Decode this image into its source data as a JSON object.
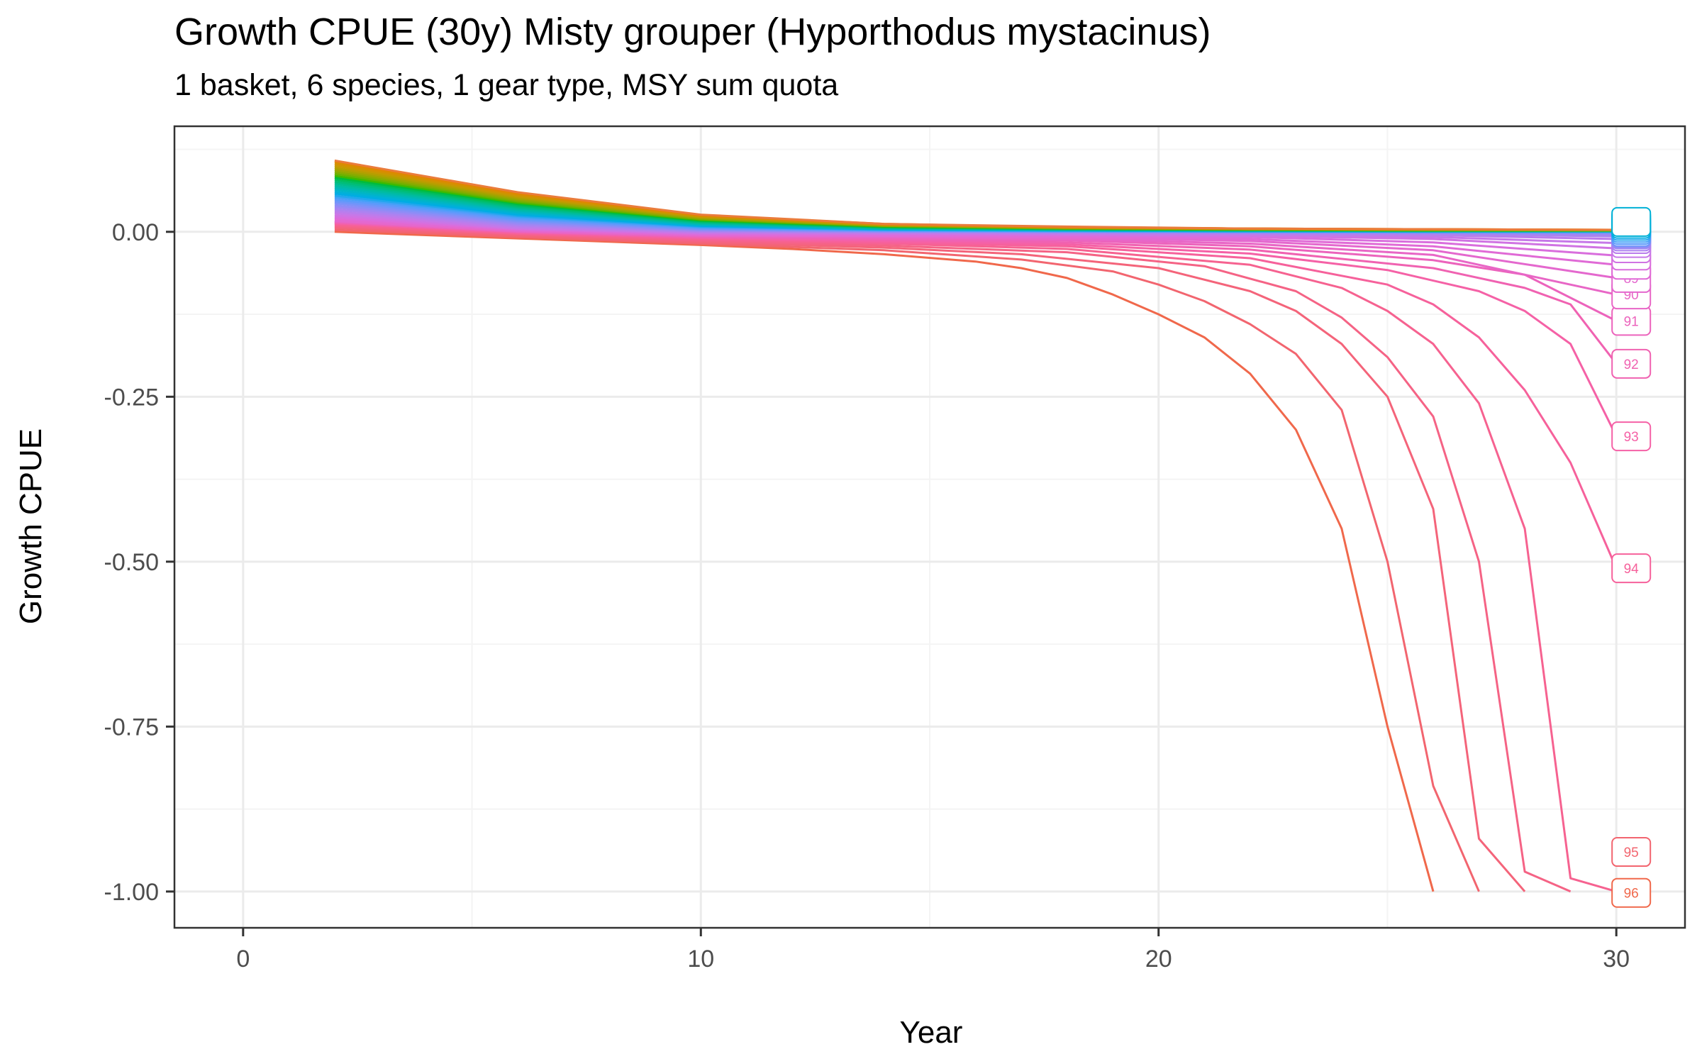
{
  "chart_data": {
    "type": "line",
    "title": "Growth CPUE (30y) Misty grouper (Hyporthodus mystacinus)",
    "subtitle": "1 basket, 6 species, 1 gear type, MSY sum quota",
    "xlabel": "Year",
    "ylabel": "Growth CPUE",
    "xlim": [
      -1.5,
      31.5
    ],
    "ylim": [
      -1.055,
      0.16
    ],
    "x_ticks": [
      0,
      10,
      20,
      30
    ],
    "x_tick_labels": [
      "0",
      "10",
      "20",
      "30"
    ],
    "y_ticks": [
      0.0,
      -0.25,
      -0.5,
      -0.75,
      -1.0
    ],
    "y_tick_labels": [
      "0.00",
      "-0.25",
      "-0.50",
      "-0.75",
      "-1.00"
    ],
    "grid": true,
    "legend": "none",
    "series_count_note": "many overlapping series (approx. 96 scenarios) with end-of-line labels at year 30",
    "series": [
      {
        "label": "96",
        "color": "#F0684B",
        "x": [
          2,
          4,
          6,
          8,
          10,
          12,
          14,
          16,
          17,
          18,
          19,
          20,
          21,
          22,
          23,
          24,
          25,
          26
        ],
        "values": [
          0.0,
          -0.005,
          -0.01,
          -0.015,
          -0.02,
          -0.026,
          -0.034,
          -0.045,
          -0.055,
          -0.07,
          -0.095,
          -0.125,
          -0.16,
          -0.215,
          -0.3,
          -0.45,
          -0.75,
          -1.0
        ]
      },
      {
        "label": "95",
        "color": "#F2656F",
        "x": [
          2,
          6,
          10,
          14,
          17,
          19,
          20,
          21,
          22,
          23,
          24,
          25,
          26,
          27
        ],
        "values": [
          0.003,
          -0.008,
          -0.018,
          -0.028,
          -0.042,
          -0.06,
          -0.08,
          -0.105,
          -0.14,
          -0.185,
          -0.27,
          -0.5,
          -0.84,
          -1.0
        ]
      },
      {
        "label": "",
        "color": "#F4647A",
        "x": [
          2,
          6,
          10,
          14,
          17,
          20,
          22,
          23,
          24,
          25,
          26,
          27,
          28
        ],
        "values": [
          0.006,
          -0.006,
          -0.016,
          -0.024,
          -0.034,
          -0.055,
          -0.09,
          -0.12,
          -0.17,
          -0.25,
          -0.42,
          -0.92,
          -1.0
        ]
      },
      {
        "label": "",
        "color": "#F56385",
        "x": [
          2,
          6,
          10,
          14,
          18,
          21,
          23,
          24,
          25,
          26,
          27,
          28,
          29
        ],
        "values": [
          0.008,
          -0.004,
          -0.014,
          -0.021,
          -0.031,
          -0.052,
          -0.09,
          -0.13,
          -0.19,
          -0.28,
          -0.5,
          -0.97,
          -1.0
        ]
      },
      {
        "label": "",
        "color": "#F66290",
        "x": [
          2,
          6,
          10,
          14,
          18,
          22,
          24,
          25,
          26,
          27,
          28,
          29,
          30
        ],
        "values": [
          0.01,
          -0.003,
          -0.012,
          -0.018,
          -0.026,
          -0.05,
          -0.085,
          -0.12,
          -0.17,
          -0.26,
          -0.45,
          -0.98,
          -1.0
        ]
      },
      {
        "label": "94",
        "color": "#F6619B",
        "x": [
          2,
          6,
          10,
          14,
          18,
          22,
          25,
          26,
          27,
          28,
          29,
          30
        ],
        "values": [
          0.012,
          -0.002,
          -0.01,
          -0.016,
          -0.022,
          -0.04,
          -0.08,
          -0.11,
          -0.16,
          -0.24,
          -0.35,
          -0.51
        ]
      },
      {
        "label": "93",
        "color": "#F561A6",
        "x": [
          2,
          6,
          10,
          14,
          18,
          22,
          25,
          27,
          28,
          29,
          30
        ],
        "values": [
          0.013,
          -0.001,
          -0.009,
          -0.014,
          -0.019,
          -0.033,
          -0.058,
          -0.09,
          -0.12,
          -0.17,
          -0.31
        ]
      },
      {
        "label": "92",
        "color": "#F062B1",
        "x": [
          2,
          6,
          10,
          14,
          18,
          22,
          26,
          28,
          29,
          30
        ],
        "values": [
          0.014,
          0.0,
          -0.008,
          -0.012,
          -0.016,
          -0.027,
          -0.055,
          -0.085,
          -0.11,
          -0.2
        ]
      },
      {
        "label": "91",
        "color": "#EC63BC",
        "x": [
          2,
          6,
          10,
          14,
          18,
          22,
          26,
          28,
          30
        ],
        "values": [
          0.015,
          0.0,
          -0.007,
          -0.01,
          -0.013,
          -0.022,
          -0.043,
          -0.065,
          -0.135
        ]
      },
      {
        "label": "90",
        "color": "#E866C6",
        "x": [
          2,
          6,
          10,
          14,
          18,
          22,
          26,
          30
        ],
        "values": [
          0.016,
          0.001,
          -0.006,
          -0.008,
          -0.011,
          -0.018,
          -0.035,
          -0.095
        ]
      },
      {
        "label": "89",
        "color": "#E468CE",
        "x": [
          2,
          6,
          10,
          14,
          18,
          22,
          26,
          30
        ],
        "values": [
          0.017,
          0.002,
          -0.005,
          -0.007,
          -0.009,
          -0.014,
          -0.028,
          -0.07
        ]
      },
      {
        "label": "",
        "color": "#E06AD6",
        "x": [
          2,
          6,
          10,
          14,
          18,
          22,
          26,
          30
        ],
        "values": [
          0.02,
          0.003,
          -0.004,
          -0.006,
          -0.007,
          -0.011,
          -0.022,
          -0.05
        ]
      },
      {
        "label": "",
        "color": "#D96EDD",
        "x": [
          2,
          6,
          10,
          14,
          18,
          22,
          26,
          30
        ],
        "values": [
          0.022,
          0.004,
          -0.003,
          -0.004,
          -0.005,
          -0.008,
          -0.016,
          -0.036
        ]
      },
      {
        "label": "",
        "color": "#D073E3",
        "x": [
          2,
          6,
          10,
          14,
          18,
          22,
          26,
          30
        ],
        "values": [
          0.025,
          0.005,
          -0.002,
          -0.003,
          -0.004,
          -0.006,
          -0.011,
          -0.025
        ]
      },
      {
        "label": "",
        "color": "#C678E8",
        "x": [
          2,
          6,
          10,
          14,
          18,
          22,
          26,
          30
        ],
        "values": [
          0.028,
          0.006,
          -0.001,
          -0.002,
          -0.003,
          -0.004,
          -0.008,
          -0.017
        ]
      },
      {
        "label": "",
        "color": "#BA7DEC",
        "x": [
          2,
          6,
          10,
          14,
          18,
          22,
          26,
          30
        ],
        "values": [
          0.031,
          0.008,
          0.0,
          -0.001,
          -0.002,
          -0.003,
          -0.005,
          -0.011
        ]
      },
      {
        "label": "",
        "color": "#AD82F0",
        "x": [
          2,
          6,
          10,
          14,
          18,
          22,
          26,
          30
        ],
        "values": [
          0.034,
          0.01,
          0.001,
          0.0,
          -0.001,
          -0.002,
          -0.003,
          -0.007
        ]
      },
      {
        "label": "",
        "color": "#9F87F3",
        "x": [
          2,
          6,
          10,
          14,
          18,
          22,
          26,
          30
        ],
        "values": [
          0.037,
          0.012,
          0.002,
          0.0,
          0.0,
          -0.001,
          -0.002,
          -0.004
        ]
      },
      {
        "label": "",
        "color": "#8F8CF6",
        "x": [
          2,
          6,
          10,
          14,
          18,
          22,
          26,
          30
        ],
        "values": [
          0.04,
          0.014,
          0.003,
          0.001,
          0.0,
          0.0,
          -0.001,
          -0.002
        ]
      },
      {
        "label": "",
        "color": "#7F91F8",
        "x": [
          2,
          6,
          10,
          14,
          18,
          22,
          26,
          30
        ],
        "values": [
          0.043,
          0.016,
          0.004,
          0.001,
          0.0,
          0.0,
          0.0,
          -0.001
        ]
      },
      {
        "label": "",
        "color": "#6D96FA",
        "x": [
          2,
          6,
          10,
          14,
          18,
          22,
          26,
          30
        ],
        "values": [
          0.046,
          0.018,
          0.005,
          0.002,
          0.001,
          0.0,
          0.0,
          0.0
        ]
      },
      {
        "label": "",
        "color": "#5A9BFB",
        "x": [
          2,
          6,
          10,
          14,
          18,
          22,
          26,
          30
        ],
        "values": [
          0.049,
          0.02,
          0.006,
          0.002,
          0.001,
          0.0,
          0.0,
          0.0
        ]
      },
      {
        "label": "",
        "color": "#43A1F7",
        "x": [
          2,
          6,
          10,
          14,
          18,
          22,
          26,
          30
        ],
        "values": [
          0.052,
          0.022,
          0.007,
          0.003,
          0.001,
          0.001,
          0.0,
          0.0
        ]
      },
      {
        "label": "",
        "color": "#21A7EE",
        "x": [
          2,
          6,
          10,
          14,
          18,
          22,
          26,
          30
        ],
        "values": [
          0.055,
          0.024,
          0.008,
          0.003,
          0.002,
          0.001,
          0.0,
          0.0
        ]
      },
      {
        "label": "",
        "color": "#00ACE3",
        "x": [
          2,
          6,
          10,
          14,
          18,
          22,
          26,
          30
        ],
        "values": [
          0.058,
          0.026,
          0.009,
          0.004,
          0.002,
          0.001,
          0.001,
          0.001
        ]
      },
      {
        "label": "",
        "color": "#00B1D6",
        "x": [
          2,
          6,
          10,
          14,
          18,
          22,
          26,
          30
        ],
        "values": [
          0.061,
          0.028,
          0.01,
          0.004,
          0.002,
          0.001,
          0.001,
          0.001
        ]
      },
      {
        "label": "",
        "color": "#00B5C6",
        "x": [
          2,
          6,
          10,
          14,
          18,
          22,
          26,
          30
        ],
        "values": [
          0.064,
          0.03,
          0.011,
          0.005,
          0.003,
          0.002,
          0.001,
          0.001
        ]
      },
      {
        "label": "",
        "color": "#00B8B5",
        "x": [
          2,
          6,
          10,
          14,
          18,
          22,
          26,
          30
        ],
        "values": [
          0.067,
          0.032,
          0.012,
          0.005,
          0.003,
          0.002,
          0.001,
          0.001
        ]
      },
      {
        "label": "",
        "color": "#00BBA3",
        "x": [
          2,
          6,
          10,
          14,
          18,
          22,
          26,
          30
        ],
        "values": [
          0.07,
          0.034,
          0.013,
          0.006,
          0.003,
          0.002,
          0.001,
          0.001
        ]
      },
      {
        "label": "",
        "color": "#00BC8F",
        "x": [
          2,
          6,
          10,
          14,
          18,
          22,
          26,
          30
        ],
        "values": [
          0.073,
          0.036,
          0.014,
          0.006,
          0.004,
          0.002,
          0.002,
          0.001
        ]
      },
      {
        "label": "",
        "color": "#00BD79",
        "x": [
          2,
          6,
          10,
          14,
          18,
          22,
          26,
          30
        ],
        "values": [
          0.076,
          0.038,
          0.015,
          0.007,
          0.004,
          0.003,
          0.002,
          0.002
        ]
      },
      {
        "label": "",
        "color": "#00BD5F",
        "x": [
          2,
          6,
          10,
          14,
          18,
          22,
          26,
          30
        ],
        "values": [
          0.079,
          0.04,
          0.016,
          0.007,
          0.004,
          0.003,
          0.002,
          0.002
        ]
      },
      {
        "label": "",
        "color": "#00BC3C",
        "x": [
          2,
          6,
          10,
          14,
          18,
          22,
          26,
          30
        ],
        "values": [
          0.082,
          0.042,
          0.017,
          0.008,
          0.005,
          0.003,
          0.002,
          0.002
        ]
      },
      {
        "label": "",
        "color": "#3DBA00",
        "x": [
          2,
          6,
          10,
          14,
          18,
          22,
          26,
          30
        ],
        "values": [
          0.085,
          0.044,
          0.018,
          0.008,
          0.005,
          0.003,
          0.002,
          0.002
        ]
      },
      {
        "label": "",
        "color": "#6BB100",
        "x": [
          2,
          6,
          10,
          14,
          18,
          22,
          26,
          30
        ],
        "values": [
          0.088,
          0.046,
          0.019,
          0.009,
          0.005,
          0.004,
          0.003,
          0.002
        ]
      },
      {
        "label": "",
        "color": "#88AB00",
        "x": [
          2,
          6,
          10,
          14,
          18,
          22,
          26,
          30
        ],
        "values": [
          0.091,
          0.048,
          0.02,
          0.009,
          0.006,
          0.004,
          0.003,
          0.002
        ]
      },
      {
        "label": "",
        "color": "#9FA500",
        "x": [
          2,
          6,
          10,
          14,
          18,
          22,
          26,
          30
        ],
        "values": [
          0.094,
          0.05,
          0.021,
          0.01,
          0.006,
          0.004,
          0.003,
          0.003
        ]
      },
      {
        "label": "",
        "color": "#B49F00",
        "x": [
          2,
          6,
          10,
          14,
          18,
          22,
          26,
          30
        ],
        "values": [
          0.097,
          0.052,
          0.022,
          0.01,
          0.006,
          0.004,
          0.003,
          0.003
        ]
      },
      {
        "label": "",
        "color": "#C69900",
        "x": [
          2,
          6,
          10,
          14,
          18,
          22,
          26,
          30
        ],
        "values": [
          0.1,
          0.054,
          0.023,
          0.011,
          0.007,
          0.005,
          0.003,
          0.003
        ]
      },
      {
        "label": "",
        "color": "#D49000",
        "x": [
          2,
          6,
          10,
          14,
          18,
          22,
          26,
          30
        ],
        "values": [
          0.103,
          0.056,
          0.024,
          0.011,
          0.007,
          0.005,
          0.004,
          0.003
        ]
      },
      {
        "label": "",
        "color": "#E18600",
        "x": [
          2,
          6,
          10,
          14,
          18,
          22,
          26,
          30
        ],
        "values": [
          0.106,
          0.058,
          0.025,
          0.012,
          0.007,
          0.005,
          0.004,
          0.003
        ]
      },
      {
        "label": "",
        "color": "#EA7C3C",
        "x": [
          2,
          6,
          10,
          14,
          18,
          22,
          26,
          30
        ],
        "values": [
          0.108,
          0.06,
          0.026,
          0.012,
          0.008,
          0.005,
          0.004,
          0.003
        ]
      }
    ],
    "end_labels": [
      {
        "text": "96",
        "y": -1.002,
        "color": "#F0684B"
      },
      {
        "text": "95",
        "y": -0.94,
        "color": "#F2656F"
      },
      {
        "text": "94",
        "y": -0.51,
        "color": "#F6619B"
      },
      {
        "text": "93",
        "y": -0.31,
        "color": "#F561A6"
      },
      {
        "text": "92",
        "y": -0.2,
        "color": "#F062B1"
      },
      {
        "text": "91",
        "y": -0.135,
        "color": "#EC63BC"
      },
      {
        "text": "90",
        "y": -0.095,
        "color": "#E866C6"
      },
      {
        "text": "89",
        "y": -0.07,
        "color": "#E468CE"
      },
      {
        "text": "",
        "y": -0.05,
        "color": "#E06AD6"
      },
      {
        "text": "",
        "y": -0.036,
        "color": "#D96EDD"
      },
      {
        "text": "",
        "y": -0.025,
        "color": "#D073E3"
      },
      {
        "text": "",
        "y": -0.017,
        "color": "#C678E8"
      },
      {
        "text": "",
        "y": -0.011,
        "color": "#BA7DEC"
      },
      {
        "text": "",
        "y": -0.007,
        "color": "#AD82F0"
      },
      {
        "text": "",
        "y": -0.004,
        "color": "#9F87F3"
      },
      {
        "text": "",
        "y": -0.002,
        "color": "#8F8CF6"
      },
      {
        "text": "",
        "y": 0.0,
        "color": "#6D96FA"
      },
      {
        "text": "",
        "y": 0.003,
        "color": "#5A9BFB"
      },
      {
        "text": "",
        "y": 0.006,
        "color": "#43A1F7"
      },
      {
        "text": "",
        "y": 0.009,
        "color": "#21A7EE"
      },
      {
        "text": "",
        "y": 0.012,
        "color": "#00ACE3"
      },
      {
        "text": "",
        "y": 0.015,
        "color": "#00B1D6"
      }
    ],
    "colors": {
      "panel_border": "#333333",
      "grid_major": "#EBEBEB",
      "grid_minor": "#F4F4F4",
      "tick_text": "#4D4D4D",
      "label_box_fill": "#FFFFFF"
    }
  }
}
